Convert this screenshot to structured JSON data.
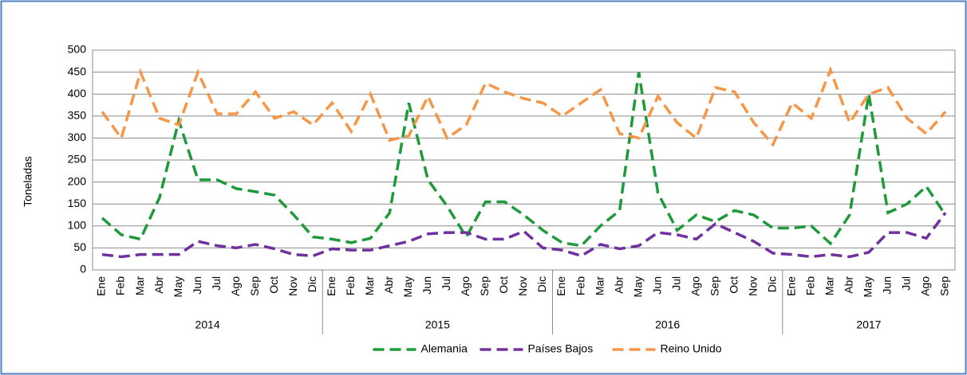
{
  "chart_data": {
    "type": "line",
    "y_label": "Toneladas",
    "categories": [
      "Ene",
      "Feb",
      "Mar",
      "Abr",
      "May",
      "Jun",
      "Jul",
      "Ago",
      "Sep",
      "Oct",
      "Nov",
      "Dic",
      "Ene",
      "Feb",
      "Mar",
      "Abr",
      "May",
      "Jun",
      "Jul",
      "Ago",
      "Sep",
      "Oct",
      "Nov",
      "Dic",
      "Ene",
      "Feb",
      "Mar",
      "Abr",
      "May",
      "Jun",
      "Jul",
      "Ago",
      "Sep",
      "Oct",
      "Nov",
      "Dic",
      "Ene",
      "Feb",
      "Mar",
      "Abr",
      "May",
      "Jun",
      "Jul",
      "Ago",
      "Sep"
    ],
    "groups": [
      {
        "label": "2014",
        "size": 12
      },
      {
        "label": "2015",
        "size": 12
      },
      {
        "label": "2016",
        "size": 12
      },
      {
        "label": "2017",
        "size": 9
      }
    ],
    "series": [
      {
        "name": "Alemania",
        "color": "#1e9a3a",
        "values": [
          118,
          80,
          70,
          165,
          340,
          205,
          205,
          185,
          178,
          170,
          125,
          75,
          70,
          62,
          72,
          130,
          380,
          205,
          145,
          75,
          155,
          155,
          125,
          90,
          62,
          55,
          100,
          135,
          450,
          175,
          90,
          125,
          110,
          135,
          125,
          95,
          95,
          100,
          60,
          125,
          400,
          130,
          150,
          190,
          125
        ]
      },
      {
        "name": "Países Bajos",
        "color": "#7030a0",
        "values": [
          35,
          30,
          35,
          35,
          35,
          65,
          55,
          50,
          58,
          48,
          35,
          32,
          48,
          45,
          45,
          55,
          65,
          82,
          85,
          85,
          70,
          70,
          88,
          50,
          45,
          32,
          58,
          48,
          55,
          85,
          80,
          70,
          105,
          85,
          65,
          38,
          35,
          30,
          35,
          30,
          40,
          85,
          85,
          72,
          130
        ]
      },
      {
        "name": "Reino Unido",
        "color": "#f79646",
        "values": [
          360,
          300,
          450,
          345,
          330,
          450,
          355,
          355,
          405,
          345,
          360,
          330,
          380,
          315,
          400,
          295,
          305,
          395,
          300,
          330,
          425,
          405,
          390,
          380,
          350,
          380,
          410,
          310,
          300,
          395,
          335,
          300,
          415,
          405,
          335,
          285,
          380,
          345,
          455,
          335,
          400,
          415,
          345,
          310,
          360
        ]
      }
    ],
    "ylim": [
      0,
      500
    ],
    "yticks": [
      0,
      50,
      100,
      150,
      200,
      250,
      300,
      350,
      400,
      450,
      500
    ],
    "grid": true,
    "legend": "bottom"
  }
}
